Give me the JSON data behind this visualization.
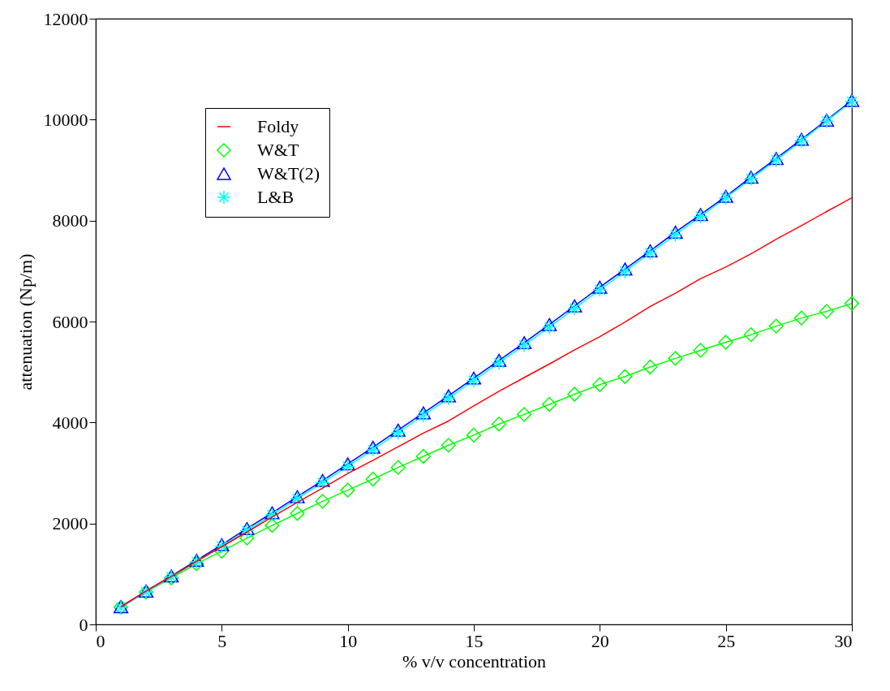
{
  "chart_data": {
    "type": "line",
    "xlabel": "% v/v concentration",
    "ylabel": "attenuation (Np/m)",
    "xlim": [
      0,
      30
    ],
    "ylim": [
      0,
      12000
    ],
    "xticks": [
      0,
      5,
      10,
      15,
      20,
      25,
      30
    ],
    "yticks": [
      0,
      2000,
      4000,
      6000,
      8000,
      10000,
      12000
    ],
    "grid": false,
    "legend": "top left",
    "x": [
      1,
      2,
      3,
      4,
      5,
      6,
      7,
      8,
      9,
      10,
      11,
      12,
      13,
      14,
      15,
      16,
      17,
      18,
      19,
      20,
      21,
      22,
      23,
      24,
      25,
      26,
      27,
      28,
      29,
      30
    ],
    "series": [
      {
        "name": "Foldy",
        "color": "#ff0000",
        "marker": "none",
        "values": [
          350,
          660,
          950,
          1250,
          1540,
          1830,
          2130,
          2420,
          2700,
          2990,
          3250,
          3520,
          3790,
          4030,
          4330,
          4620,
          4890,
          5160,
          5440,
          5700,
          5990,
          6300,
          6560,
          6850,
          7080,
          7340,
          7630,
          7900,
          8180,
          8450
        ]
      },
      {
        "name": "W&T",
        "color": "#00ff00",
        "marker": "diamond",
        "values": [
          340,
          640,
          920,
          1200,
          1450,
          1710,
          1960,
          2200,
          2440,
          2660,
          2880,
          3110,
          3330,
          3550,
          3750,
          3970,
          4160,
          4360,
          4560,
          4750,
          4910,
          5100,
          5270,
          5430,
          5590,
          5740,
          5910,
          6070,
          6200,
          6360
        ]
      },
      {
        "name": "W&T(2)",
        "color": "#0000ff",
        "marker": "triangle",
        "values": [
          350,
          660,
          960,
          1270,
          1580,
          1900,
          2210,
          2530,
          2850,
          3180,
          3510,
          3850,
          4190,
          4530,
          4880,
          5230,
          5580,
          5940,
          6310,
          6680,
          7040,
          7400,
          7770,
          8120,
          8480,
          8860,
          9230,
          9610,
          9990,
          10380
        ]
      },
      {
        "name": "L&B",
        "color": "#00ffff",
        "marker": "cross",
        "values": [
          340,
          640,
          940,
          1240,
          1550,
          1860,
          2170,
          2490,
          2810,
          3130,
          3460,
          3800,
          4140,
          4480,
          4830,
          5180,
          5530,
          5890,
          6260,
          6630,
          6990,
          7360,
          7720,
          8080,
          8450,
          8830,
          9200,
          9580,
          9970,
          10360
        ]
      }
    ]
  }
}
